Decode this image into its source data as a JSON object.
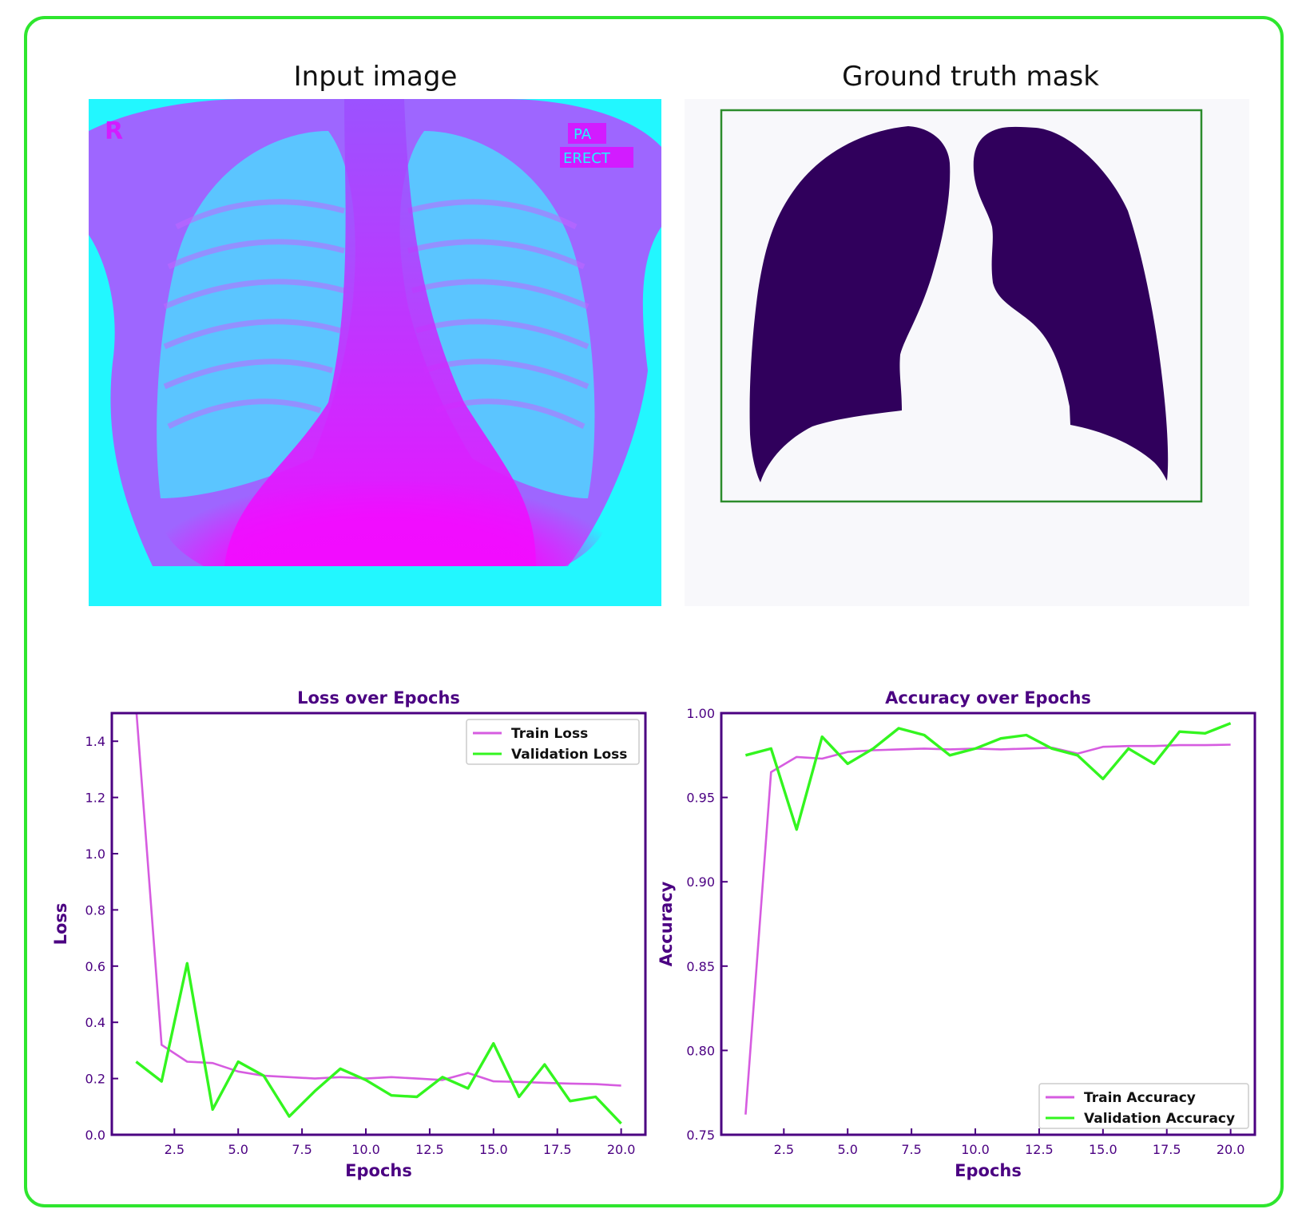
{
  "panels": {
    "input_title": "Input image",
    "mask_title": "Ground truth mask",
    "xray_labels": {
      "side": "R",
      "view": "PA",
      "pos": "ERECT"
    }
  },
  "colors": {
    "frame": "#2ee62e",
    "xray_cyan": "#22f7ff",
    "xray_magenta": "#f20cff",
    "mask_fill": "#30005c",
    "mask_bg": "#f8f8fb",
    "bbox": "#2c8c2c",
    "axis": "#4b0082",
    "train": "#d65ce0",
    "val": "#33f51f"
  },
  "chart_data": [
    {
      "type": "line",
      "title": "Loss over Epochs",
      "xlabel": "Epochs",
      "ylabel": "Loss",
      "xlim": [
        0.05,
        20.95
      ],
      "ylim": [
        0.0,
        1.5
      ],
      "xticks": [
        "2.5",
        "5.0",
        "7.5",
        "10.0",
        "12.5",
        "15.0",
        "17.5",
        "20.0"
      ],
      "yticks": [
        "0.0",
        "0.2",
        "0.4",
        "0.6",
        "0.8",
        "1.0",
        "1.2",
        "1.4"
      ],
      "legend": "top-right",
      "x": [
        1,
        2,
        3,
        4,
        5,
        6,
        7,
        8,
        9,
        10,
        11,
        12,
        13,
        14,
        15,
        16,
        17,
        18,
        19,
        20
      ],
      "series": [
        {
          "name": "Train Loss",
          "color": "#d65ce0",
          "values": [
            1.52,
            0.32,
            0.26,
            0.255,
            0.225,
            0.21,
            0.205,
            0.2,
            0.205,
            0.2,
            0.205,
            0.2,
            0.195,
            0.22,
            0.19,
            0.188,
            0.185,
            0.182,
            0.18,
            0.175
          ]
        },
        {
          "name": "Validation Loss",
          "color": "#33f51f",
          "values": [
            0.26,
            0.19,
            0.61,
            0.09,
            0.26,
            0.21,
            0.065,
            0.155,
            0.235,
            0.195,
            0.14,
            0.135,
            0.205,
            0.165,
            0.325,
            0.135,
            0.25,
            0.12,
            0.135,
            0.04
          ]
        }
      ]
    },
    {
      "type": "line",
      "title": "Accuracy over Epochs",
      "xlabel": "Epochs",
      "ylabel": "Accuracy",
      "xlim": [
        0.05,
        20.95
      ],
      "ylim": [
        0.75,
        1.0
      ],
      "xticks": [
        "2.5",
        "5.0",
        "7.5",
        "10.0",
        "12.5",
        "15.0",
        "17.5",
        "20.0"
      ],
      "yticks": [
        "0.75",
        "0.80",
        "0.85",
        "0.90",
        "0.95",
        "1.00"
      ],
      "legend": "bottom-right",
      "x": [
        1,
        2,
        3,
        4,
        5,
        6,
        7,
        8,
        9,
        10,
        11,
        12,
        13,
        14,
        15,
        16,
        17,
        18,
        19,
        20
      ],
      "series": [
        {
          "name": "Train Accuracy",
          "color": "#d65ce0",
          "values": [
            0.762,
            0.965,
            0.974,
            0.973,
            0.977,
            0.978,
            0.9785,
            0.979,
            0.9785,
            0.979,
            0.9785,
            0.979,
            0.9795,
            0.976,
            0.98,
            0.9805,
            0.9805,
            0.981,
            0.981,
            0.9813
          ]
        },
        {
          "name": "Validation Accuracy",
          "color": "#33f51f",
          "values": [
            0.975,
            0.979,
            0.931,
            0.986,
            0.97,
            0.979,
            0.991,
            0.987,
            0.975,
            0.979,
            0.985,
            0.987,
            0.979,
            0.975,
            0.961,
            0.979,
            0.97,
            0.989,
            0.988,
            0.994
          ]
        }
      ]
    }
  ]
}
